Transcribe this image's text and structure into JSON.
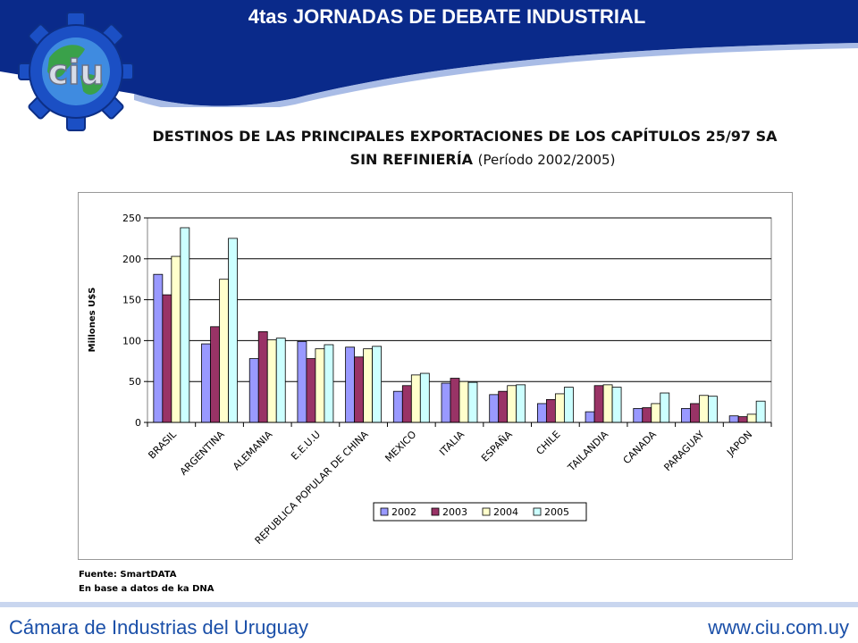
{
  "header": {
    "title": "4tas JORNADAS DE DEBATE INDUSTRIAL",
    "logo_text": "ciu"
  },
  "slide": {
    "title_line1": "DESTINOS DE LAS PRINCIPALES EXPORTACIONES DE LOS CAPÍTULOS 25/97 SA",
    "title_line2": "SIN REFINIERÍA",
    "title_period": "(Período 2002/2005)"
  },
  "chart_data": {
    "type": "bar",
    "ylabel": "Millones U$S",
    "ylim": [
      0,
      250
    ],
    "yticks": [
      0,
      50,
      100,
      150,
      200,
      250
    ],
    "grid": true,
    "legend_position": "bottom",
    "categories": [
      "BRASIL",
      "ARGENTINA",
      "ALEMANIA",
      "E.E.U.U",
      "REPUBLICA POPULAR DE CHINA",
      "MEXICO",
      "ITALIA",
      "ESPAÑA",
      "CHILE",
      "TAILANDIA",
      "CANADA",
      "PARAGUAY",
      "JAPON"
    ],
    "series": [
      {
        "name": "2002",
        "color": "#9999ff",
        "values": [
          181,
          96,
          78,
          99,
          92,
          38,
          48,
          34,
          23,
          13,
          17,
          17,
          8
        ]
      },
      {
        "name": "2003",
        "color": "#993366",
        "values": [
          156,
          117,
          111,
          78,
          80,
          45,
          54,
          38,
          28,
          45,
          18,
          23,
          7
        ]
      },
      {
        "name": "2004",
        "color": "#ffffcc",
        "values": [
          203,
          175,
          101,
          90,
          90,
          58,
          50,
          45,
          35,
          46,
          23,
          33,
          10
        ]
      },
      {
        "name": "2005",
        "color": "#ccffff",
        "values": [
          238,
          225,
          103,
          95,
          93,
          60,
          49,
          46,
          43,
          43,
          36,
          32,
          26
        ]
      }
    ]
  },
  "source": {
    "line1": "Fuente: SmartDATA",
    "line2": "En base a datos de ka DNA"
  },
  "footer": {
    "org_name": "Cámara de Industrias del Uruguay",
    "website": "www.ciu.com.uy"
  },
  "colors": {
    "header_blue": "#0a2a8a",
    "footer_text": "#1a4fa8"
  }
}
